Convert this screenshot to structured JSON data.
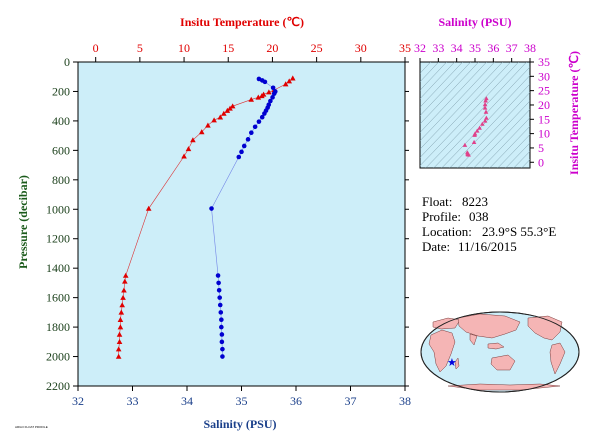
{
  "chart_data": [
    {
      "type": "scatter",
      "title": "",
      "ylabel": "Pressure (decibar)",
      "ylim": [
        2200,
        0
      ],
      "yticks": [
        0,
        200,
        400,
        600,
        800,
        1000,
        1200,
        1400,
        1600,
        1800,
        2000,
        2200
      ],
      "top_axis": {
        "label": "Insitu Temperature (℃)",
        "range": [
          -2,
          35
        ],
        "ticks": [
          0,
          5,
          10,
          15,
          20,
          25,
          30,
          35
        ]
      },
      "bottom_axis": {
        "label": "Salinity (PSU)",
        "range": [
          32,
          38
        ],
        "ticks": [
          32,
          33,
          34,
          35,
          36,
          37,
          38
        ]
      },
      "background": "#cdeef9",
      "series": [
        {
          "name": "",
          "axis": "top",
          "marker": "triangle",
          "color": "#e00000",
          "points": [
            [
              22.3,
              110
            ],
            [
              21.9,
              130
            ],
            [
              21.5,
              150
            ],
            [
              20.2,
              190
            ],
            [
              19.6,
              205
            ],
            [
              19.0,
              220
            ],
            [
              18.8,
              230
            ],
            [
              18.4,
              240
            ],
            [
              17.6,
              255
            ],
            [
              15.5,
              300
            ],
            [
              15.2,
              315
            ],
            [
              14.9,
              330
            ],
            [
              14.5,
              350
            ],
            [
              14.1,
              375
            ],
            [
              13.4,
              395
            ],
            [
              12.7,
              430
            ],
            [
              12.0,
              475
            ],
            [
              11.0,
              530
            ],
            [
              10.5,
              590
            ],
            [
              10.0,
              640
            ],
            [
              6.0,
              995
            ],
            [
              3.4,
              1450
            ],
            [
              3.3,
              1490
            ],
            [
              3.2,
              1550
            ],
            [
              3.1,
              1600
            ],
            [
              3.0,
              1650
            ],
            [
              2.9,
              1700
            ],
            [
              2.8,
              1750
            ],
            [
              2.8,
              1800
            ],
            [
              2.7,
              1850
            ],
            [
              2.7,
              1900
            ],
            [
              2.6,
              1950
            ],
            [
              2.6,
              2000
            ]
          ]
        },
        {
          "name": "",
          "axis": "bottom",
          "marker": "circle",
          "color": "#0000d0",
          "points": [
            [
              35.32,
              115
            ],
            [
              35.38,
              125
            ],
            [
              35.43,
              135
            ],
            [
              35.58,
              175
            ],
            [
              35.62,
              200
            ],
            [
              35.6,
              215
            ],
            [
              35.57,
              240
            ],
            [
              35.53,
              265
            ],
            [
              35.5,
              290
            ],
            [
              35.48,
              310
            ],
            [
              35.45,
              330
            ],
            [
              35.42,
              350
            ],
            [
              35.38,
              375
            ],
            [
              35.32,
              405
            ],
            [
              35.25,
              440
            ],
            [
              35.18,
              480
            ],
            [
              35.12,
              525
            ],
            [
              35.05,
              570
            ],
            [
              35.0,
              610
            ],
            [
              34.95,
              645
            ],
            [
              34.45,
              995
            ],
            [
              34.57,
              1450
            ],
            [
              34.58,
              1500
            ],
            [
              34.59,
              1550
            ],
            [
              34.6,
              1600
            ],
            [
              34.61,
              1650
            ],
            [
              34.62,
              1700
            ],
            [
              34.63,
              1750
            ],
            [
              34.63,
              1800
            ],
            [
              34.64,
              1850
            ],
            [
              34.64,
              1900
            ],
            [
              34.65,
              1950
            ],
            [
              34.65,
              2000
            ]
          ]
        }
      ]
    },
    {
      "type": "scatter",
      "title": "",
      "xlabel": "Salinity (PSU)",
      "ylabel": "Insitu Temperature (℃)",
      "xlim": [
        32,
        38
      ],
      "ylim": [
        -2,
        35
      ],
      "xticks": [
        32,
        33,
        34,
        35,
        36,
        37,
        38
      ],
      "yticks": [
        0,
        5,
        10,
        15,
        20,
        25,
        30,
        35
      ],
      "background": "#cdeef9",
      "series": [
        {
          "name": "",
          "marker": "triangle",
          "color": "#e0408a",
          "points": [
            [
              35.62,
              22.3
            ],
            [
              35.58,
              21.5
            ],
            [
              35.55,
              20.2
            ],
            [
              35.55,
              19.0
            ],
            [
              35.6,
              17.6
            ],
            [
              35.62,
              15.5
            ],
            [
              35.55,
              14.5
            ],
            [
              35.4,
              13.4
            ],
            [
              35.25,
              12.0
            ],
            [
              35.12,
              11.0
            ],
            [
              35.0,
              10.0
            ],
            [
              34.98,
              9.5
            ],
            [
              34.95,
              7.0
            ],
            [
              34.45,
              6.0
            ],
            [
              34.58,
              3.4
            ],
            [
              34.62,
              3.0
            ],
            [
              34.65,
              2.6
            ],
            [
              34.6,
              2.8
            ]
          ]
        }
      ]
    }
  ],
  "info": {
    "float_label": "Float:",
    "float_value": "8223",
    "profile_label": "Profile:",
    "profile_value": "038",
    "location_label": "Location:",
    "location_value": "23.9°S  55.3°E",
    "date_label": "Date:",
    "date_value": "11/16/2015"
  },
  "footer_text": "ARGO FLOAT PROFILE"
}
